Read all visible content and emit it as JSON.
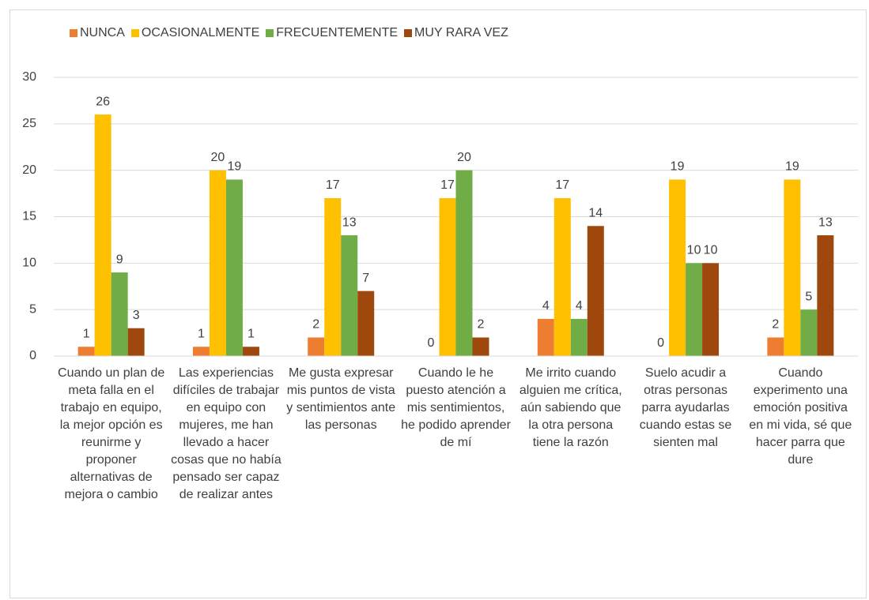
{
  "chart_data": {
    "type": "bar",
    "categories": [
      "Cuando un plan de meta falla en el trabajo en equipo, la mejor opción es reunirme y proponer alternativas de mejora o cambio",
      "Las experiencias difíciles de trabajar en equipo con mujeres, me han llevado a hacer cosas que no había pensado ser capaz de realizar antes",
      "Me gusta expresar mis puntos de vista y sentimientos ante las personas",
      "Cuando le he puesto atención a mis sentimientos, he podido aprender de mí",
      "Me irrito cuando alguien me crítica, aún sabiendo que la otra persona tiene la razón",
      "Suelo acudir a otras personas parra ayudarlas cuando estas se sienten mal",
      "Cuando experimento una emoción positiva en mi vida, sé que hacer parra que dure"
    ],
    "series": [
      {
        "name": "NUNCA",
        "color": "#ED7D31",
        "values": [
          1,
          1,
          2,
          0,
          4,
          0,
          2
        ]
      },
      {
        "name": "OCASIONALMENTE",
        "color": "#FFC000",
        "values": [
          26,
          20,
          17,
          17,
          17,
          19,
          19
        ]
      },
      {
        "name": "FRECUENTEMENTE",
        "color": "#70AD47",
        "values": [
          9,
          19,
          13,
          20,
          4,
          10,
          5
        ]
      },
      {
        "name": "MUY RARA VEZ",
        "color": "#9E480E",
        "values": [
          3,
          1,
          7,
          2,
          14,
          10,
          13
        ]
      }
    ],
    "ylim": [
      0,
      30
    ],
    "yticks": [
      0,
      5,
      10,
      15,
      20,
      25,
      30
    ],
    "grid": true,
    "legend": "top"
  }
}
